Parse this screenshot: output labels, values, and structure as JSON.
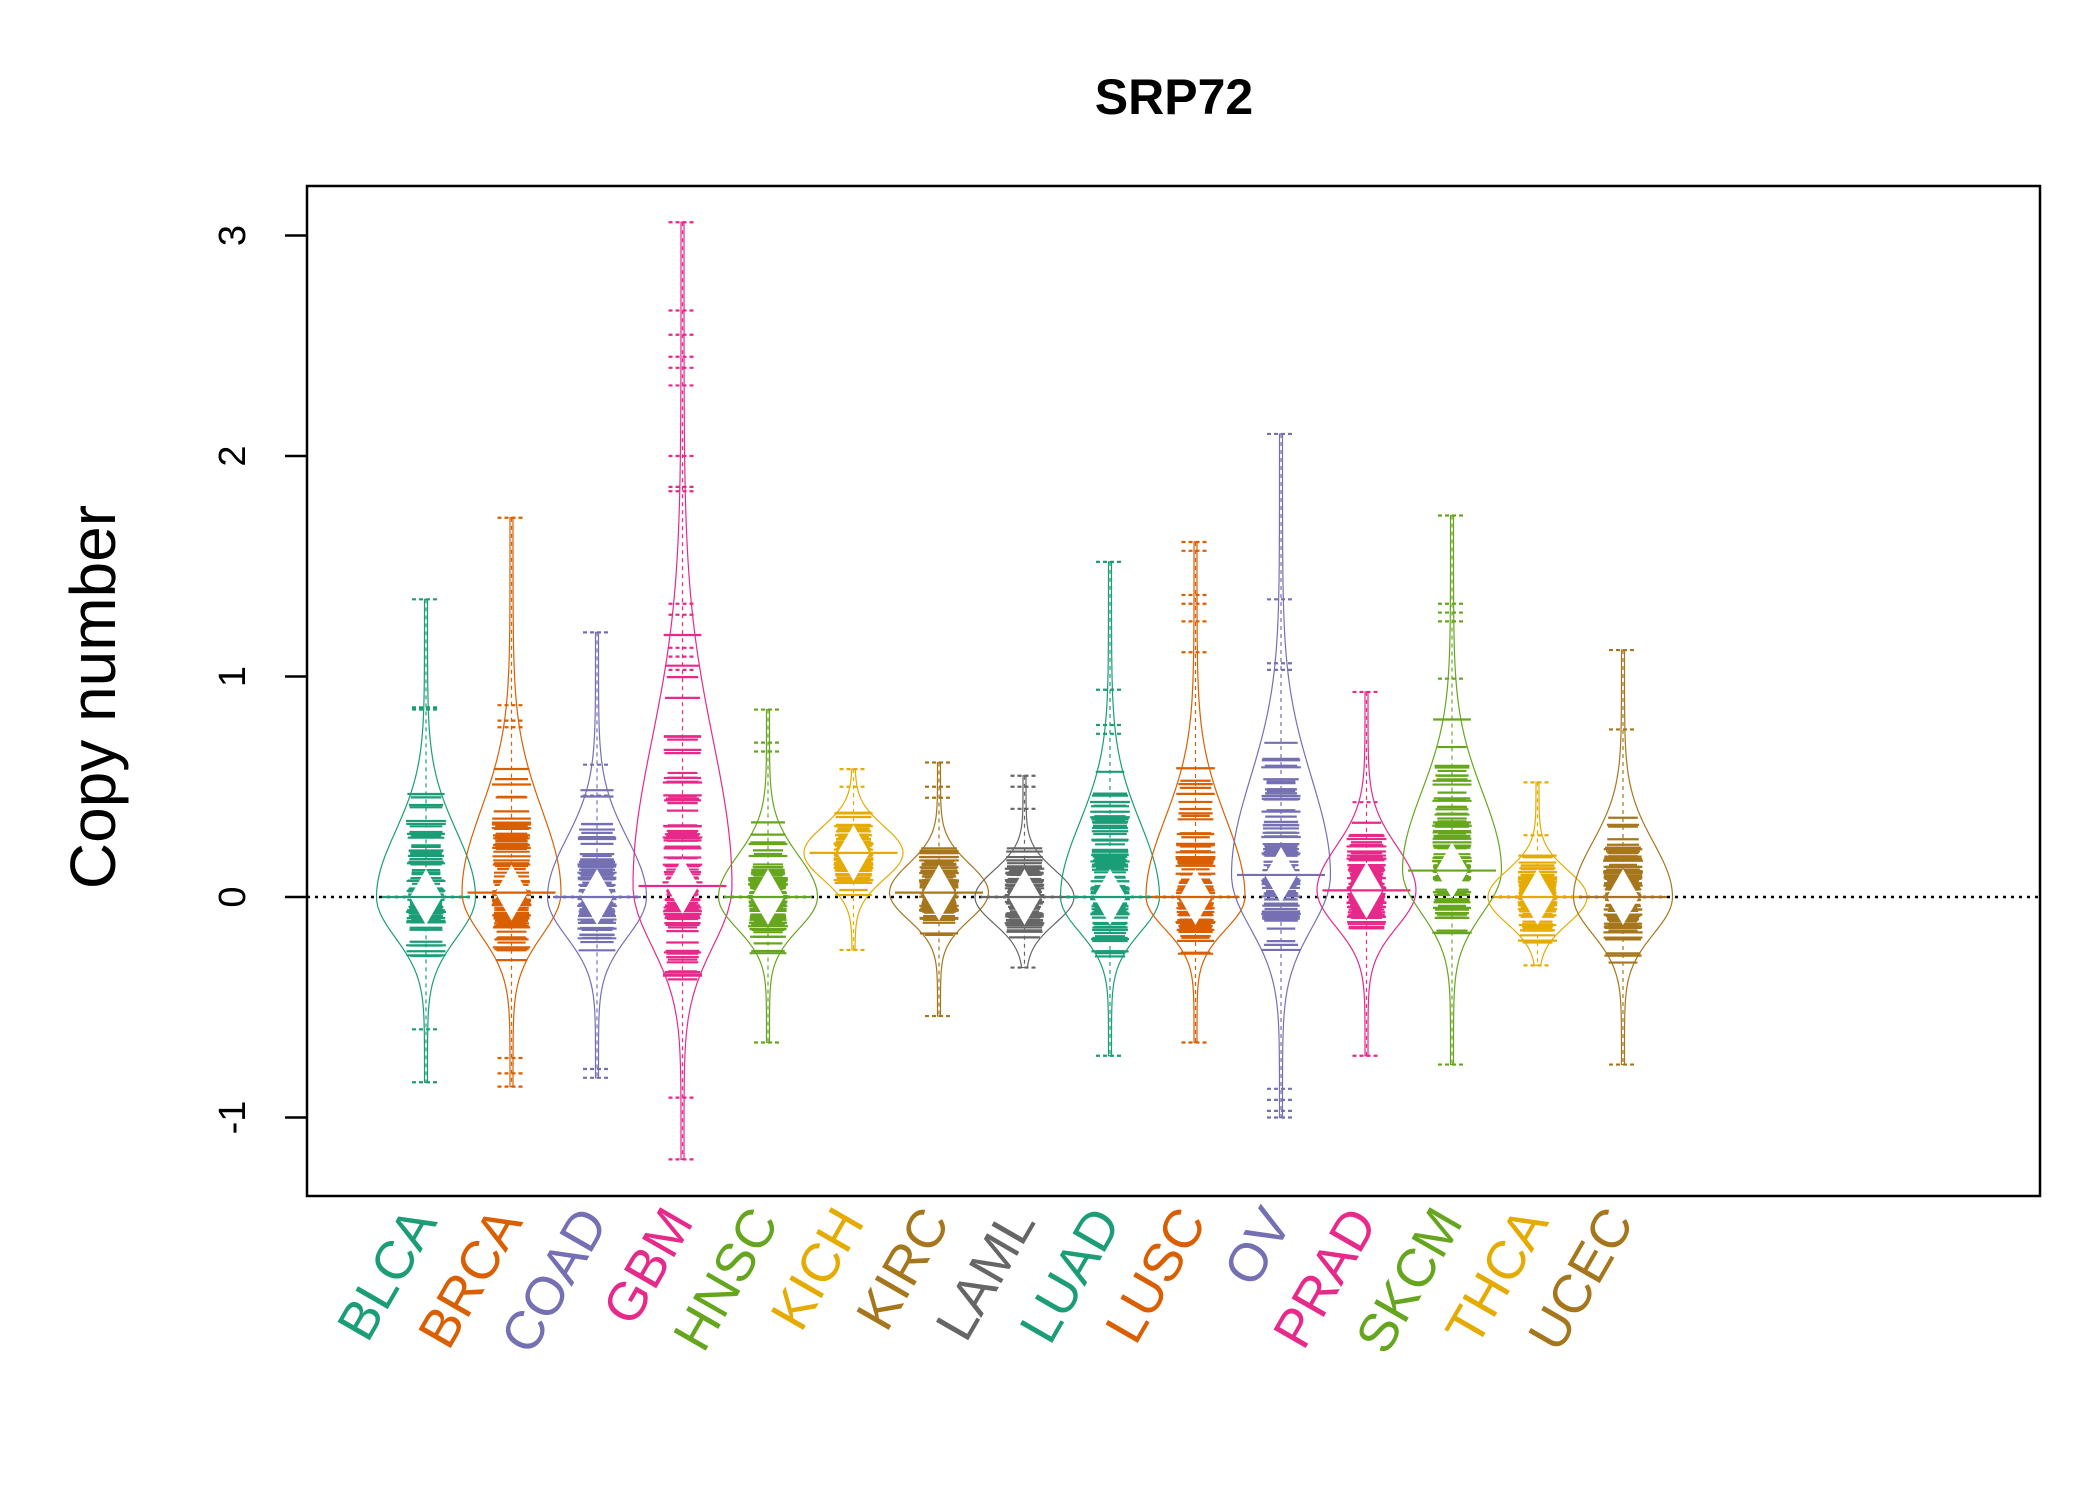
{
  "chart_data": {
    "type": "beanplot",
    "title": "SRP72",
    "ylabel": "Copy number",
    "xlabel": "",
    "ylim": [
      -1.35,
      3.25
    ],
    "yticks": [
      -1,
      0,
      1,
      2,
      3
    ],
    "ytick_labels": [
      "-1",
      "0",
      "1",
      "2",
      "3"
    ],
    "reference_line": 0,
    "grid": false,
    "legend": "none",
    "categories": [
      "BLCA",
      "BRCA",
      "COAD",
      "GBM",
      "HNSC",
      "KICH",
      "KIRC",
      "LAML",
      "LUAD",
      "LUSC",
      "OV",
      "PRAD",
      "SKCM",
      "THCA",
      "UCEC"
    ],
    "series": [
      {
        "category": "BLCA",
        "color": "#1B9E77",
        "median": 0.0,
        "range": [
          -0.84,
          1.35
        ],
        "outliers": [
          1.35,
          0.86,
          0.85,
          -0.6,
          -0.84
        ]
      },
      {
        "category": "BRCA",
        "color": "#D95F02",
        "median": 0.02,
        "range": [
          -0.86,
          1.72
        ],
        "outliers": [
          1.72,
          0.87,
          0.8,
          0.77,
          -0.73,
          -0.8,
          -0.86
        ]
      },
      {
        "category": "COAD",
        "color": "#7570B3",
        "median": 0.0,
        "range": [
          -0.82,
          1.2
        ],
        "outliers": [
          1.2,
          0.6,
          0.46,
          -0.78,
          -0.82
        ]
      },
      {
        "category": "GBM",
        "color": "#E7298A",
        "median": 0.05,
        "range": [
          -1.19,
          3.06
        ],
        "outliers": [
          3.06,
          2.66,
          2.55,
          2.45,
          2.4,
          2.32,
          2.0,
          1.86,
          1.84,
          1.33,
          1.28,
          1.13,
          1.09,
          1.03,
          -0.91,
          -1.19
        ]
      },
      {
        "category": "HNSC",
        "color": "#66A61E",
        "median": 0.0,
        "range": [
          -0.66,
          0.85
        ],
        "outliers": [
          0.85,
          0.7,
          0.66,
          -0.66
        ]
      },
      {
        "category": "KICH",
        "color": "#E6AB02",
        "median": 0.2,
        "range": [
          -0.24,
          0.58
        ],
        "outliers": [
          0.58,
          0.5,
          -0.24
        ]
      },
      {
        "category": "KIRC",
        "color": "#A6761D",
        "median": 0.02,
        "range": [
          -0.54,
          0.61
        ],
        "outliers": [
          0.61,
          0.5,
          0.45,
          -0.54
        ]
      },
      {
        "category": "LAML",
        "color": "#666666",
        "median": 0.0,
        "range": [
          -0.32,
          0.55
        ],
        "outliers": [
          0.55,
          0.5,
          0.4,
          -0.32
        ]
      },
      {
        "category": "LUAD",
        "color": "#1B9E77",
        "median": 0.0,
        "range": [
          -0.72,
          1.52
        ],
        "outliers": [
          1.52,
          0.94,
          0.78,
          0.74,
          -0.72
        ]
      },
      {
        "category": "LUSC",
        "color": "#D95F02",
        "median": 0.0,
        "range": [
          -0.66,
          1.61
        ],
        "outliers": [
          1.61,
          1.57,
          1.37,
          1.33,
          1.25,
          1.11,
          -0.66
        ]
      },
      {
        "category": "OV",
        "color": "#7570B3",
        "median": 0.1,
        "range": [
          -1.0,
          2.1
        ],
        "outliers": [
          2.1,
          1.35,
          1.06,
          1.03,
          -0.87,
          -0.92,
          -0.97,
          -1.0
        ]
      },
      {
        "category": "PRAD",
        "color": "#E7298A",
        "median": 0.03,
        "range": [
          -0.72,
          0.93
        ],
        "outliers": [
          0.93,
          0.43,
          -0.72
        ]
      },
      {
        "category": "SKCM",
        "color": "#66A61E",
        "median": 0.12,
        "range": [
          -0.76,
          1.73
        ],
        "outliers": [
          1.73,
          1.33,
          1.29,
          1.25,
          0.99,
          -0.76
        ]
      },
      {
        "category": "THCA",
        "color": "#E6AB02",
        "median": 0.0,
        "range": [
          -0.31,
          0.52
        ],
        "outliers": [
          0.52,
          0.28,
          -0.31
        ]
      },
      {
        "category": "UCEC",
        "color": "#A6761D",
        "median": 0.0,
        "range": [
          -0.76,
          1.12
        ],
        "outliers": [
          1.12,
          0.76,
          -0.76
        ]
      }
    ]
  }
}
